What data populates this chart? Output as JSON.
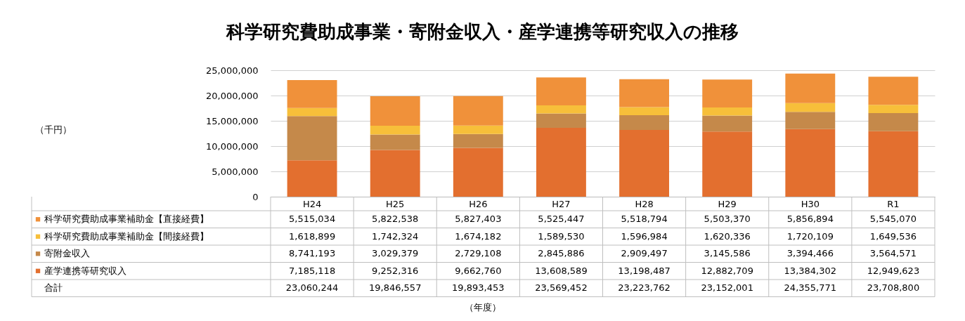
{
  "chart_data": {
    "type": "bar",
    "title": "科学研究費助成事業・寄附金収入・産学連携等研究収入の推移",
    "annotations": [
      "（千円）",
      "合計",
      "（年度）",
      "23,060,244",
      "19,846,557",
      "19,893,453",
      "23,569,452",
      "23,223,762",
      "23,152,001",
      "24,355,771",
      "23,708,800"
    ],
    "categories": [
      "H24",
      "H25",
      "H26",
      "H27",
      "H28",
      "H29",
      "H30",
      "R1"
    ],
    "stacked": true,
    "series": [
      {
        "name": "産学連携等研究収入",
        "color": "#e36f2f",
        "values": [
          7185118,
          9252316,
          9662760,
          13608589,
          13198487,
          12882709,
          13384302,
          12949623
        ],
        "value_labels": [
          "7,185,118",
          "9,252,316",
          "9,662,760",
          "13,608,589",
          "13,198,487",
          "12,882,709",
          "13,384,302",
          "12,949,623"
        ]
      },
      {
        "name": "寄附金収入",
        "color": "#c5894a",
        "values": [
          8741193,
          3029379,
          2729108,
          2845886,
          2909497,
          3145586,
          3394466,
          3564571
        ],
        "value_labels": [
          "8,741,193",
          "3,029,379",
          "2,729,108",
          "2,845,886",
          "2,909,497",
          "3,145,586",
          "3,394,466",
          "3,564,571"
        ]
      },
      {
        "name": "科学研究費助成事業補助金【間接経費】",
        "color": "#f7bf3a",
        "values": [
          1618899,
          1742324,
          1674182,
          1589530,
          1596984,
          1620336,
          1720109,
          1649536
        ],
        "value_labels": [
          "1,618,899",
          "1,742,324",
          "1,674,182",
          "1,589,530",
          "1,596,984",
          "1,620,336",
          "1,720,109",
          "1,649,536"
        ]
      },
      {
        "name": "科学研究費助成事業補助金【直接経費】",
        "color": "#f0913a",
        "values": [
          5515034,
          5822538,
          5827403,
          5525447,
          5518794,
          5503370,
          5856894,
          5545070
        ],
        "value_labels": [
          "5,515,034",
          "5,822,538",
          "5,827,403",
          "5,525,447",
          "5,518,794",
          "5,503,370",
          "5,856,894",
          "5,545,070"
        ]
      }
    ],
    "ylim": [
      0,
      25000000
    ],
    "yticks": [
      0,
      {
        "value": 5000000,
        "label": "5,000,000"
      },
      {
        "value": 10000000,
        "label": "10,000,000"
      },
      {
        "value": 15000000,
        "label": "15,000,000"
      },
      {
        "value": 20000000,
        "label": "20,000,000"
      },
      {
        "value": 25000000,
        "label": "25,000,000"
      }
    ],
    "grid": "y",
    "legend": "bottom"
  }
}
